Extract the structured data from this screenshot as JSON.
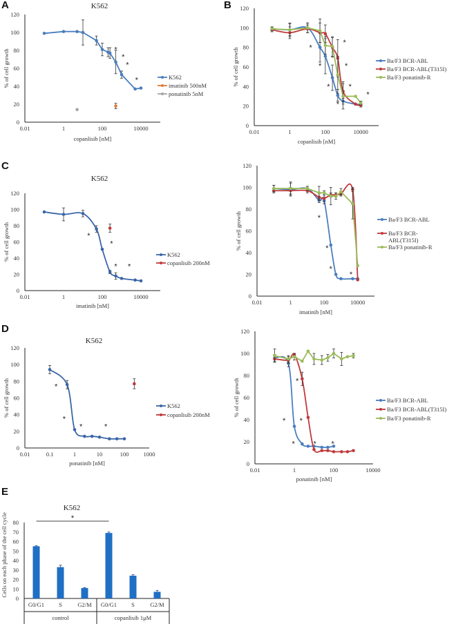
{
  "panel_letters": [
    "A",
    "B",
    "C",
    "D",
    "E"
  ],
  "colors": {
    "blue": "#4a7ebf",
    "blue_dark": "#3a66a8",
    "red": "#c0393b",
    "green": "#9bbb59",
    "orange": "#e07b39",
    "gray": "#a5a5a5",
    "bar": "#1f6fc5",
    "axis": "#222222"
  },
  "chart_data": [
    {
      "id": "A",
      "type": "line",
      "title": "K562",
      "xlabel": "copanlisib [nM]",
      "ylabel": "% of cell growth",
      "xscale": "log",
      "xlim": [
        0.01,
        100000
      ],
      "xticks": [
        "0.01",
        "1",
        "100",
        "10000"
      ],
      "ylim": [
        0,
        120
      ],
      "yticks": [
        "0",
        "20",
        "40",
        "60",
        "80",
        "100",
        "120"
      ],
      "legend_position": "right",
      "series": [
        {
          "name": "K562",
          "color": "blue",
          "smooth": false,
          "x": [
            0.1,
            1,
            5,
            10,
            50,
            100,
            200,
            250,
            500,
            1000,
            5000,
            10000
          ],
          "y": [
            99,
            101,
            101,
            100,
            91,
            81,
            78,
            77,
            67,
            53,
            37,
            38
          ],
          "err": [
            0,
            0,
            0,
            14,
            5,
            7,
            5,
            6,
            13,
            4,
            0,
            0
          ]
        },
        {
          "name": "imatinib 500nM",
          "color": "orange",
          "marker_only": true,
          "x": [
            500
          ],
          "y": [
            18
          ],
          "err": [
            3
          ]
        },
        {
          "name": "ponatinib 5nM",
          "color": "gray",
          "marker_only": true,
          "x": [
            5
          ],
          "y": [
            14
          ],
          "err": [
            0
          ]
        }
      ],
      "stars": [
        [
          500,
          82
        ],
        [
          1200,
          74
        ],
        [
          2000,
          65
        ],
        [
          6000,
          48
        ]
      ]
    },
    {
      "id": "B",
      "type": "line",
      "title": "",
      "xlabel": "copanlisib [nM]",
      "ylabel": "% of cell growth",
      "xscale": "log",
      "xlim": [
        0.01,
        100000
      ],
      "xticks": [
        "0.01",
        "1",
        "100",
        "10000"
      ],
      "ylim": [
        0,
        120
      ],
      "yticks": [
        "0",
        "20",
        "40",
        "60",
        "80",
        "100",
        "120"
      ],
      "legend_position": "right",
      "series": [
        {
          "name": "Ba/F3 BCR-ABL",
          "color": "blue",
          "smooth": true,
          "x": [
            0.1,
            1,
            10,
            50,
            100,
            250,
            500,
            1000,
            5000,
            10000
          ],
          "y": [
            99,
            98,
            100,
            80,
            71,
            49,
            31,
            25,
            22,
            22
          ],
          "err": [
            2,
            7,
            5,
            15,
            18,
            13,
            6,
            3,
            0,
            2
          ]
        },
        {
          "name": "Ba/F3 BCR-ABL(T315I)",
          "color": "red",
          "smooth": true,
          "x": [
            0.1,
            1,
            10,
            50,
            100,
            250,
            500,
            1000,
            5000,
            10000
          ],
          "y": [
            98,
            95,
            99,
            95,
            94,
            80,
            69,
            35,
            22,
            21
          ],
          "err": [
            2,
            6,
            4,
            10,
            9,
            10,
            19,
            10,
            0,
            2
          ]
        },
        {
          "name": "Ba/F3 ponatinib-R",
          "color": "green",
          "smooth": false,
          "x": [
            0.1,
            1,
            10,
            50,
            100,
            250,
            500,
            1000,
            5000,
            10000
          ],
          "y": [
            99,
            98,
            100,
            97,
            82,
            81,
            52,
            30,
            30,
            23
          ],
          "err": [
            2,
            6,
            5,
            12,
            9,
            10,
            19,
            13,
            0,
            2
          ]
        }
      ],
      "stars": [
        [
          15,
          81
        ],
        [
          50,
          62
        ],
        [
          150,
          41
        ],
        [
          500,
          23
        ],
        [
          1200,
          86
        ],
        [
          1500,
          62
        ],
        [
          2500,
          41
        ],
        [
          25000,
          33
        ]
      ]
    },
    {
      "id": "C",
      "type": "line",
      "title": "K562",
      "xlabel": "imatinib [nM]",
      "ylabel": "% of cell growth",
      "xscale": "log",
      "xlim": [
        0.01,
        100000
      ],
      "xticks": [
        "0.01",
        "1",
        "100",
        "10000"
      ],
      "ylim": [
        0,
        120
      ],
      "yticks": [
        "0",
        "20",
        "40",
        "60",
        "80",
        "100",
        "120"
      ],
      "legend_position": "right",
      "series": [
        {
          "name": "K562",
          "color": "blue_dark",
          "smooth": true,
          "x": [
            0.1,
            1,
            10,
            50,
            100,
            250,
            500,
            1000,
            5000,
            10000
          ],
          "y": [
            97,
            94,
            95,
            76,
            51,
            23,
            18,
            15,
            13,
            12
          ],
          "err": [
            0,
            8,
            4,
            4,
            0,
            2,
            4,
            0,
            0,
            0
          ]
        },
        {
          "name": "copanlisib 200nM",
          "color": "red",
          "marker_only": true,
          "x": [
            250
          ],
          "y": [
            77
          ],
          "err": [
            5
          ]
        }
      ],
      "stars": [
        [
          20,
          69
        ],
        [
          300,
          59
        ],
        [
          500,
          31
        ],
        [
          2500,
          31
        ]
      ]
    },
    {
      "id": "C2",
      "type": "line",
      "title": "",
      "xlabel": "imatinib [nM]",
      "ylabel": "% of cell growth",
      "xscale": "log",
      "xlim": [
        0.01,
        100000
      ],
      "xticks": [
        "0.01",
        "1",
        "100",
        "10000"
      ],
      "ylim": [
        0,
        120
      ],
      "yticks": [
        "0",
        "20",
        "40",
        "60",
        "80",
        "100",
        "120"
      ],
      "legend_position": "right",
      "series": [
        {
          "name": "Ba/F3 BCR-ABL",
          "color": "blue",
          "smooth": true,
          "x": [
            0.1,
            1,
            10,
            50,
            100,
            250,
            500,
            1000,
            5000,
            10000
          ],
          "y": [
            99,
            98,
            99,
            88,
            88,
            47,
            20,
            16,
            16,
            16
          ],
          "err": [
            3,
            6,
            2,
            2,
            3,
            0,
            0,
            0,
            0,
            0
          ]
        },
        {
          "name": "Ba/F3 BCR-\nABL(T315I)",
          "color": "red",
          "smooth": true,
          "x": [
            0.1,
            1,
            10,
            50,
            100,
            250,
            500,
            1000,
            5000,
            10000
          ],
          "y": [
            97,
            97,
            97,
            91,
            90,
            93,
            93,
            94,
            98,
            15
          ],
          "err": [
            2,
            3,
            2,
            3,
            3,
            2,
            2,
            2,
            2,
            0
          ]
        },
        {
          "name": "Ba/F3 ponatinib-R",
          "color": "green",
          "smooth": false,
          "x": [
            0.1,
            1,
            10,
            50,
            100,
            250,
            500,
            1000,
            5000,
            10000
          ],
          "y": [
            99,
            99,
            99,
            95,
            95,
            92,
            92,
            96,
            85,
            28
          ],
          "err": [
            3,
            6,
            2,
            6,
            2,
            8,
            3,
            3,
            14,
            0
          ]
        }
      ],
      "stars": [
        [
          50,
          73
        ],
        [
          150,
          45
        ],
        [
          250,
          26
        ],
        [
          4000,
          21
        ]
      ]
    },
    {
      "id": "D",
      "type": "line",
      "title": "K562",
      "xlabel": "ponatinib [nM]",
      "ylabel": "% of cell growth",
      "xscale": "log",
      "xlim": [
        0.01,
        1000
      ],
      "xticks": [
        "0.01",
        "0.1",
        "1",
        "10",
        "100",
        "1000"
      ],
      "ylim": [
        0,
        120
      ],
      "yticks": [
        "0",
        "20",
        "40",
        "60",
        "80",
        "100",
        "120"
      ],
      "legend_position": "right",
      "series": [
        {
          "name": "K562",
          "color": "blue_dark",
          "smooth": true,
          "x": [
            0.1,
            0.5,
            1,
            2.5,
            5,
            10,
            25,
            50,
            100
          ],
          "y": [
            94,
            76,
            22,
            14,
            14,
            13,
            11,
            11,
            11
          ],
          "err": [
            5,
            5,
            0,
            0,
            0,
            0,
            0,
            0,
            0
          ]
        },
        {
          "name": "copanlisib 200nM",
          "color": "red",
          "marker_only": true,
          "x": [
            250
          ],
          "y": [
            77
          ],
          "err": [
            6
          ]
        }
      ],
      "stars": [
        [
          0.18,
          75
        ],
        [
          0.38,
          36
        ],
        [
          1.8,
          27
        ],
        [
          18,
          27
        ]
      ]
    },
    {
      "id": "D2",
      "type": "line",
      "title": "",
      "xlabel": "ponatinib [nM]",
      "ylabel": "% of cell growth",
      "xscale": "log",
      "xlim": [
        0.01,
        10000
      ],
      "xticks": [
        "0.01",
        "1",
        "100",
        "10000"
      ],
      "ylim": [
        0,
        120
      ],
      "yticks": [
        "0",
        "20",
        "40",
        "60",
        "80",
        "100",
        "120"
      ],
      "legend_position": "right",
      "series": [
        {
          "name": "Ba/F3 BCR-ABL",
          "color": "blue",
          "smooth": true,
          "x": [
            0.1,
            0.5,
            1,
            2.5,
            5,
            10,
            25,
            50,
            100
          ],
          "y": [
            96,
            91,
            34,
            18,
            16,
            16,
            15,
            15,
            16
          ],
          "err": [
            3,
            3,
            0,
            0,
            0,
            0,
            0,
            0,
            0
          ]
        },
        {
          "name": "Ba/F3 BCR-ABL(T315I)",
          "color": "red",
          "smooth": true,
          "x": [
            0.1,
            0.5,
            1,
            2.5,
            5,
            10,
            25,
            50,
            100,
            250,
            500,
            1000
          ],
          "y": [
            95,
            94,
            99,
            77,
            42,
            13,
            12,
            12,
            11,
            11,
            11,
            12
          ],
          "err": [
            3,
            3,
            0,
            6,
            0,
            0,
            0,
            0,
            0,
            0,
            0,
            0
          ]
        },
        {
          "name": "Ba/F3 ponatinib-R",
          "color": "green",
          "smooth": false,
          "x": [
            0.1,
            0.5,
            1,
            2.5,
            5,
            10,
            25,
            50,
            100,
            250,
            500,
            1000
          ],
          "y": [
            98,
            95,
            97,
            93,
            102,
            95,
            94,
            96,
            100,
            95,
            97,
            98
          ],
          "err": [
            6,
            3,
            3,
            0,
            0,
            5,
            4,
            3,
            4,
            6,
            0,
            2
          ]
        }
      ],
      "stars": [
        [
          0.3,
          40
        ],
        [
          1.4,
          76
        ],
        [
          0.9,
          19
        ],
        [
          2.2,
          40
        ],
        [
          11,
          19
        ],
        [
          90,
          19
        ]
      ]
    },
    {
      "id": "E",
      "type": "bar",
      "title": "K562",
      "ylabel": "Cells on each phase of the cell cycle",
      "ylim": [
        0,
        80
      ],
      "yticks": [
        "0",
        "10",
        "20",
        "30",
        "40",
        "50",
        "60",
        "70",
        "80"
      ],
      "categories": [
        "G0/G1",
        "S",
        "G2/M",
        "G0/G1",
        "S",
        "G2/M"
      ],
      "groups": [
        {
          "label": "control",
          "span": [
            0,
            2
          ]
        },
        {
          "label": "copanlisib 1μM",
          "span": [
            3,
            5
          ]
        }
      ],
      "values": [
        55,
        33,
        11,
        69,
        24,
        7
      ],
      "err": [
        0.5,
        2,
        0.5,
        1,
        1,
        1.5
      ],
      "significance": {
        "from": 0,
        "to": 3,
        "label": "*"
      }
    }
  ]
}
